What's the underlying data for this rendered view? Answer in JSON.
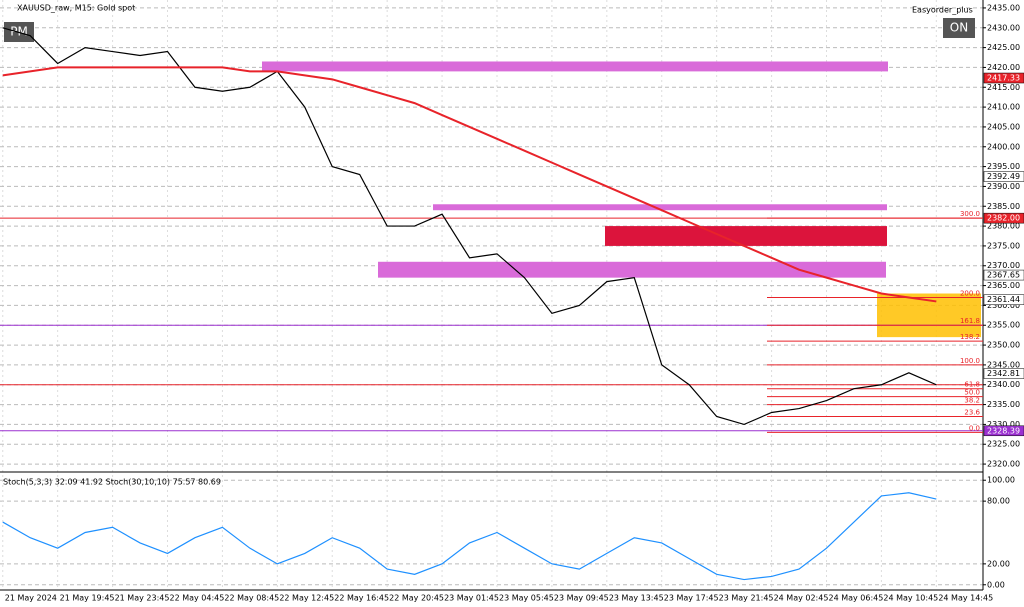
{
  "header": {
    "symbol": "XAUUSD_raw, M15: Gold spot",
    "expert": "Easyorder_plus",
    "left_button": "PM",
    "right_button": "ON"
  },
  "chart_data": [
    {
      "type": "line",
      "x": [
        0,
        1,
        2,
        3,
        4,
        5,
        6,
        7,
        8,
        9,
        10,
        11,
        12,
        13,
        14,
        15,
        16,
        17,
        18,
        19,
        20,
        21,
        22,
        23,
        24,
        25,
        26,
        27,
        28,
        29,
        30,
        31,
        32,
        33,
        34
      ],
      "categories": [
        "21 May 2024",
        null,
        "21 May 19:45",
        null,
        "21 May 23:45",
        null,
        "22 May 04:45",
        null,
        "22 May 08:45",
        null,
        "22 May 12:45",
        null,
        "22 May 16:45",
        null,
        "22 May 20:45",
        null,
        "23 May 01:45",
        null,
        "23 May 05:45",
        null,
        "23 May 09:45",
        null,
        "23 May 13:45",
        null,
        "23 May 17:45",
        null,
        "23 May 21:45",
        null,
        "24 May 02:45",
        null,
        "24 May 06:45",
        null,
        "24 May 10:45",
        null,
        "24 May 14:45"
      ],
      "series": [
        {
          "color": "#000000",
          "values": [
            2430,
            2428,
            2421,
            2425,
            2424,
            2423,
            2424,
            2415,
            2414,
            2415,
            2419,
            2410,
            2395,
            2393,
            2380,
            2380,
            2383,
            2372,
            2373,
            2367,
            2358,
            2360,
            2366,
            2367,
            2345,
            2340,
            2332,
            2330,
            2333,
            2334,
            2336,
            2339,
            2340,
            2343,
            2340
          ]
        },
        {
          "color": "#e8232a",
          "values": [
            2418,
            2419,
            2420,
            2420,
            2420,
            2420,
            2420,
            2420,
            2420,
            2419,
            2419,
            2418,
            2417,
            2415,
            2413,
            2411,
            2408,
            2405,
            2402,
            2399,
            2396,
            2393,
            2390,
            2387,
            2384,
            2381,
            2378,
            2375,
            2372,
            2369,
            2367,
            2365,
            2363,
            2362,
            2361
          ]
        }
      ],
      "xlim": [
        -0.1,
        35.7
      ],
      "ylim": [
        2318,
        2437
      ],
      "yticks": [
        {
          "value": 2435,
          "label": "2435.00"
        },
        {
          "value": 2430,
          "label": "2430.00"
        },
        {
          "value": 2425,
          "label": "2425.00"
        },
        {
          "value": 2420,
          "label": "2420.00"
        },
        {
          "value": 2415,
          "label": "2415.00"
        },
        {
          "value": 2410,
          "label": "2410.00"
        },
        {
          "value": 2405,
          "label": "2405.00"
        },
        {
          "value": 2400,
          "label": "2400.00"
        },
        {
          "value": 2395,
          "label": "2395.00"
        },
        {
          "value": 2390,
          "label": "2390.00"
        },
        {
          "value": 2385,
          "label": "2385.00"
        },
        {
          "value": 2380,
          "label": "2380.00"
        },
        {
          "value": 2375,
          "label": "2375.00"
        },
        {
          "value": 2370,
          "label": "2370.00"
        },
        {
          "value": 2365,
          "label": "2365.00"
        },
        {
          "value": 2360,
          "label": "2360.00"
        },
        {
          "value": 2355,
          "label": "2355.00"
        },
        {
          "value": 2350,
          "label": "2350.00"
        },
        {
          "value": 2345,
          "label": "2345.00"
        },
        {
          "value": 2340,
          "label": "2340.00"
        },
        {
          "value": 2335,
          "label": "2335.00"
        },
        {
          "value": 2330,
          "label": "2330.00"
        },
        {
          "value": 2325,
          "label": "2325.00"
        },
        {
          "value": 2320,
          "label": "2320.00"
        }
      ],
      "price_labels": [
        {
          "value": 2417.33,
          "label": "2417.33",
          "color": "#e8232a"
        },
        {
          "value": 2392.49,
          "label": "2392.49",
          "color": "#ffffff"
        },
        {
          "value": 2382,
          "label": "2382.00",
          "color": "#e8232a"
        },
        {
          "value": 2367.65,
          "label": "2367.65",
          "color": "#ffffff"
        },
        {
          "value": 2361.44,
          "label": "2361.44",
          "color": "#ffffff"
        },
        {
          "value": 2342.81,
          "label": "2342.81",
          "color": "#ffffff"
        },
        {
          "value": 2328.39,
          "label": "2328.39",
          "color": "#9b30d0"
        }
      ],
      "levels": [
        {
          "value": 2382,
          "color": "#e8232a"
        },
        {
          "value": 2355,
          "color": "#9b30d0"
        },
        {
          "value": 2340,
          "color": "#e8232a"
        },
        {
          "value": 2328.39,
          "color": "#9b30d0"
        }
      ],
      "zones": [
        {
          "from": 2419,
          "to": 2421.5,
          "color": "#d96bd9"
        },
        {
          "from": 2384,
          "to": 2385.5,
          "color": "#d96bd9"
        },
        {
          "from": 2375,
          "to": 2380,
          "color": "#dc143c"
        },
        {
          "from": 2367,
          "to": 2371,
          "color": "#d96bd9"
        },
        {
          "from": 2352,
          "to": 2363,
          "color": "#ffc000"
        }
      ],
      "fib": [
        {
          "value": 2382,
          "label": "300.0"
        },
        {
          "value": 2362,
          "label": "200.0"
        },
        {
          "value": 2355,
          "label": "161.8"
        },
        {
          "value": 2351,
          "label": "138.2"
        },
        {
          "value": 2345,
          "label": "100.0"
        },
        {
          "value": 2339,
          "label": "61.8"
        },
        {
          "value": 2337,
          "label": "50.0"
        },
        {
          "value": 2335,
          "label": "38.2"
        },
        {
          "value": 2332,
          "label": "23.6"
        },
        {
          "value": 2328,
          "label": "0.0"
        }
      ],
      "grid": true
    },
    {
      "type": "line",
      "title": "Stoch(5,3,3) 32.09 41.92 Stoch(30,10,10) 75.57 80.69",
      "x": [
        0,
        1,
        2,
        3,
        4,
        5,
        6,
        7,
        8,
        9,
        10,
        11,
        12,
        13,
        14,
        15,
        16,
        17,
        18,
        19,
        20,
        21,
        22,
        23,
        24,
        25,
        26,
        27,
        28,
        29,
        30,
        31,
        32,
        33,
        34
      ],
      "series": [
        {
          "color": "#1e90ff",
          "values": [
            60,
            45,
            35,
            50,
            55,
            40,
            30,
            45,
            55,
            35,
            20,
            30,
            45,
            35,
            15,
            10,
            20,
            40,
            50,
            35,
            20,
            15,
            30,
            45,
            40,
            25,
            10,
            5,
            8,
            15,
            35,
            60,
            85,
            88,
            82
          ]
        }
      ],
      "xlim": [
        -0.1,
        35.7
      ],
      "ylim": [
        -5,
        105
      ],
      "yticks": [
        {
          "value": 100,
          "label": "100.00"
        },
        {
          "value": 80,
          "label": "80.00"
        },
        {
          "value": 20,
          "label": "20.00"
        },
        {
          "value": 0,
          "label": "0.00"
        }
      ],
      "grid": true
    }
  ]
}
